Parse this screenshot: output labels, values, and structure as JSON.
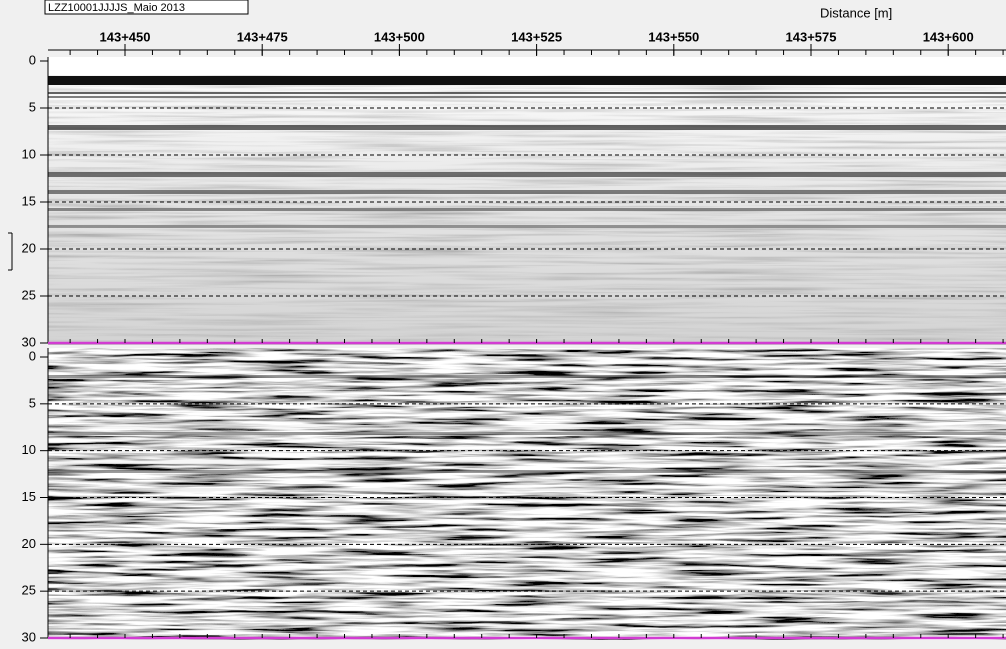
{
  "file_label": "LZZ10001JJJJS_Maio 2013",
  "axis_title": "Distance [m]",
  "distance_ticks": [
    "143+450",
    "143+475",
    "143+500",
    "143+525",
    "143+550",
    "143+575",
    "143+600"
  ],
  "panels": [
    {
      "depth_ticks": [
        0,
        5,
        10,
        15,
        20,
        25,
        30
      ]
    },
    {
      "depth_ticks": [
        0,
        5,
        10,
        15,
        20,
        25,
        30
      ]
    }
  ]
}
